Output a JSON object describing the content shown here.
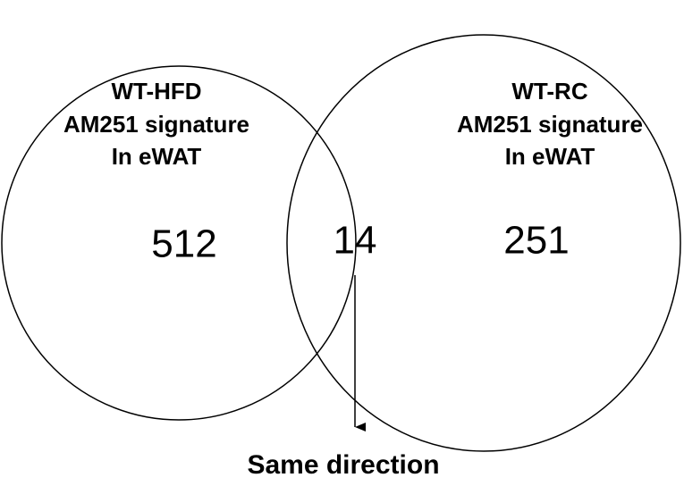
{
  "sets": [
    {
      "label": [
        "WT-HFD",
        "AM251 signature",
        "In eWAT"
      ],
      "count": 512
    },
    {
      "label": [
        "WT-RC",
        "AM251 signature",
        "In eWAT"
      ],
      "count": 251
    }
  ],
  "intersection": {
    "count": 14,
    "annotation": "Same direction"
  }
}
